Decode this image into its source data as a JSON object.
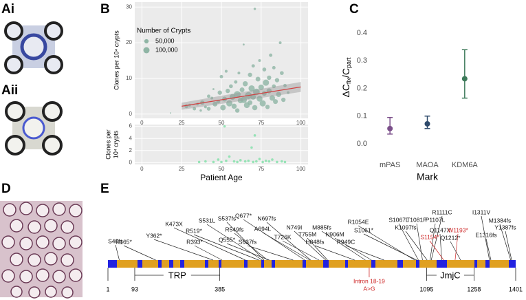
{
  "panel_labels": [
    "Ai",
    "Aii",
    "B",
    "C",
    "D",
    "E"
  ],
  "chart_data": [
    {
      "type": "scatter",
      "ylabel": "Clones per 10⁴ crypts",
      "color": "#8fb5a5",
      "xlim": [
        -4.5,
        104.5
      ],
      "ylim": [
        -1.2,
        31.4
      ],
      "xticks": [
        0,
        25,
        50,
        75,
        100
      ],
      "yticks": [
        0,
        10,
        20,
        30
      ],
      "grid": true,
      "x": [
        18,
        28,
        30,
        33,
        35,
        37,
        38,
        40,
        42,
        42,
        44,
        45,
        46,
        48,
        49,
        50,
        51,
        52,
        53,
        54,
        55,
        56,
        57,
        58,
        59,
        60,
        60,
        61,
        62,
        63,
        64,
        64,
        65,
        66,
        67,
        68,
        68,
        69,
        70,
        70,
        71,
        71,
        72,
        73,
        74,
        74,
        75,
        76,
        77,
        77,
        78,
        79,
        80,
        80,
        81,
        82,
        83,
        83,
        84,
        85,
        86,
        87,
        88,
        89,
        90,
        92
      ],
      "y": [
        0.3,
        2.2,
        2.5,
        1.5,
        2.8,
        1.0,
        3.2,
        2.0,
        5.0,
        1.5,
        4.5,
        7.0,
        2.8,
        3.5,
        6.0,
        10.5,
        1.8,
        4.2,
        12.0,
        6.5,
        3.0,
        7.8,
        4.8,
        2.2,
        9.0,
        5.5,
        1.0,
        11.5,
        3.8,
        6.8,
        19.5,
        4.0,
        8.5,
        2.5,
        5.2,
        11.0,
        3.2,
        7.2,
        4.8,
        13.5,
        29.5,
        1.8,
        6.2,
        9.8,
        4.3,
        15.0,
        7.5,
        3.0,
        12.5,
        5.8,
        8.8,
        2.0,
        6.5,
        10.2,
        16.5,
        4.5,
        7.8,
        13.0,
        3.5,
        9.5,
        5.5,
        20.0,
        11.5,
        4.0,
        8.0,
        6.0
      ],
      "sizes": [
        5000,
        40000,
        20000,
        30000,
        20000,
        15000,
        50000,
        20000,
        30000,
        40000,
        20000,
        10000,
        60000,
        40000,
        50000,
        30000,
        80000,
        60000,
        20000,
        50000,
        100000,
        40000,
        90000,
        70000,
        30000,
        120000,
        50000,
        20000,
        80000,
        60000,
        10000,
        110000,
        70000,
        90000,
        130000,
        50000,
        60000,
        100000,
        80000,
        30000,
        15000,
        70000,
        120000,
        60000,
        90000,
        20000,
        80000,
        100000,
        40000,
        60000,
        100000,
        50000,
        70000,
        50000,
        30000,
        80000,
        40000,
        30000,
        60000,
        50000,
        70000,
        20000,
        40000,
        50000,
        30000,
        20000
      ],
      "legend": {
        "title": "Number of Crypts",
        "entries": [
          {
            "value": 50000,
            "label": "50,000"
          },
          {
            "value": 100000,
            "label": "100,000"
          }
        ]
      },
      "fit": {
        "x": [
          25,
          100
        ],
        "y": [
          2.2,
          7.6
        ],
        "lower": [
          1.2,
          6.2
        ],
        "upper": [
          3.2,
          9.0
        ],
        "color": "#d04040"
      }
    },
    {
      "type": "scatter",
      "ylabel": [
        "Clones per",
        "10⁴ crypts"
      ],
      "xlabel": "Patient Age",
      "color": "#7fe0a8",
      "xlim": [
        -4.5,
        104.5
      ],
      "ylim": [
        -0.3,
        6.3
      ],
      "xticks": [
        0,
        25,
        50,
        75,
        100
      ],
      "yticks": [
        0,
        2,
        4,
        6
      ],
      "grid": true,
      "x": [
        36,
        40,
        45,
        48,
        50,
        52,
        53,
        55,
        58,
        60,
        62,
        65,
        67,
        69,
        70,
        71,
        72,
        74,
        76,
        78,
        80,
        82,
        85,
        88,
        90
      ],
      "y": [
        0.1,
        0.2,
        0.1,
        0.5,
        0.1,
        6.0,
        0.3,
        1.0,
        0.2,
        0.1,
        0.4,
        0.2,
        0.3,
        2.5,
        0.1,
        4.5,
        0.2,
        0.6,
        0.1,
        0.3,
        0.2,
        0.5,
        0.1,
        0.2,
        0.1
      ]
    },
    {
      "type": "errorbar",
      "ylabel": [
        "ΔC",
        "fix",
        "/C",
        "part"
      ],
      "xlabel": "Mark",
      "categories": [
        "mPAS",
        "MAOA",
        "KDM6A"
      ],
      "values": [
        0.055,
        0.072,
        0.235
      ],
      "lower": [
        0.035,
        0.055,
        0.165
      ],
      "upper": [
        0.095,
        0.1,
        0.34
      ],
      "colors": [
        "#7b4f8a",
        "#2e4a6b",
        "#3d7a5a"
      ],
      "ylim": [
        -0.04,
        0.47
      ],
      "yticks": [
        {
          "value": 0,
          "label": "0.0"
        },
        0.1,
        0.2,
        0.3,
        0.4
      ]
    }
  ],
  "gene": {
    "xlim": [
      1,
      1401
    ],
    "ticks": [
      1,
      93,
      385,
      1095,
      1258,
      1401
    ],
    "domains": [
      {
        "name": "TRP",
        "start": 93,
        "end": 385
      },
      {
        "name": "JmjC",
        "start": 1095,
        "end": 1258
      }
    ],
    "mutations": [
      {
        "label": "S40fs",
        "position": 40
      },
      {
        "label": "R165*",
        "position": 165
      },
      {
        "label": "Y362*",
        "position": 362
      },
      {
        "label": "R393*",
        "position": 393
      },
      {
        "label": "K473X",
        "position": 473
      },
      {
        "label": "R519*",
        "position": 519
      },
      {
        "label": "S531L",
        "position": 531
      },
      {
        "label": "S537fs",
        "position": 537
      },
      {
        "label": "R549fs",
        "position": 549
      },
      {
        "label": "Q555*",
        "position": 555
      },
      {
        "label": "S637fs",
        "position": 637
      },
      {
        "label": "Q677*",
        "position": 677
      },
      {
        "label": "A694L",
        "position": 694
      },
      {
        "label": "N697fs",
        "position": 697
      },
      {
        "label": "T726K",
        "position": 726
      },
      {
        "label": "N749I",
        "position": 749
      },
      {
        "label": "T755M",
        "position": 755
      },
      {
        "label": "M885fs",
        "position": 885
      },
      {
        "label": "H848fs",
        "position": 848
      },
      {
        "label": "N906M",
        "position": 906
      },
      {
        "label": "R949C",
        "position": 949
      },
      {
        "label": "R1054E",
        "position": 1054
      },
      {
        "label": "S1061*",
        "position": 1061
      },
      {
        "label": "S1067L",
        "position": 1067
      },
      {
        "label": "T1081P",
        "position": 1081
      },
      {
        "label": "K1097fs",
        "position": 1097
      },
      {
        "label": "P1107L",
        "position": 1107
      },
      {
        "label": "R1111C",
        "position": 1111
      },
      {
        "label": "Q1147X",
        "position": 1147
      },
      {
        "label": "S1154*",
        "position": 1154,
        "color": "#cc2222"
      },
      {
        "label": "W1193*",
        "position": 1193,
        "color": "#cc2222"
      },
      {
        "label": "Q1212*",
        "position": 1212
      },
      {
        "label": "I1311V",
        "position": 1311
      },
      {
        "label": "M1384fs",
        "position": 1384
      },
      {
        "label": "Y1387fs",
        "position": 1387
      },
      {
        "label": "E1316fs",
        "position": 1316
      }
    ],
    "intron": {
      "label": [
        "Intron 18-19",
        "A>G"
      ],
      "position": 898,
      "color": "#cc2222"
    }
  }
}
